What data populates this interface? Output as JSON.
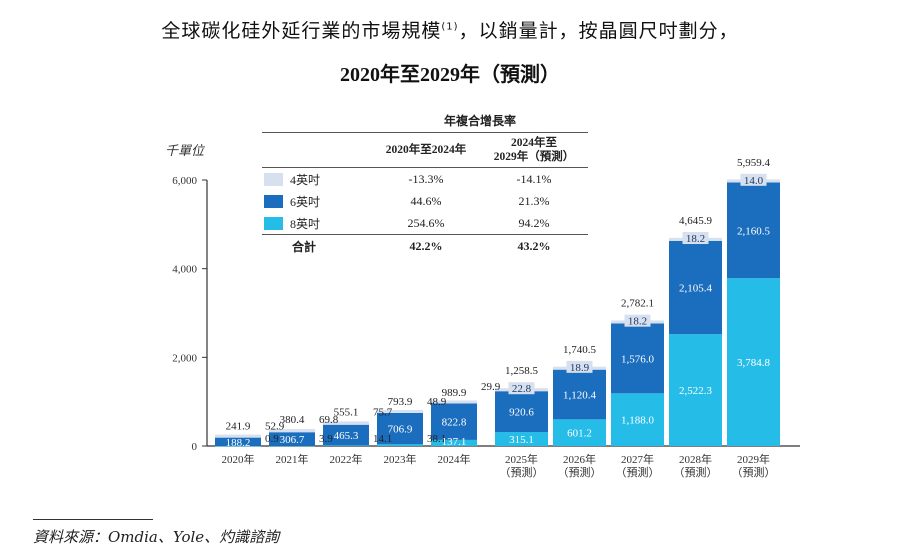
{
  "title": {
    "line1": "全球碳化硅外延行業的市場規模",
    "footnote": "(1)",
    "line1_suffix": "，以銷量計，按晶圓尺吋劃分，",
    "line2": "2020年至2029年（預測）"
  },
  "colors": {
    "inch4": "#d6e0ee",
    "inch6": "#1b6dbd",
    "inch8": "#25bde8",
    "axis": "#333333"
  },
  "cagr_table": {
    "title": "年複合增長率",
    "col1": "2020年至2024年",
    "col2_line1": "2024年至",
    "col2_line2": "2029年（預測）",
    "rows": [
      {
        "label": "4英吋",
        "key": "inch4",
        "c1": "-13.3%",
        "c2": "-14.1%"
      },
      {
        "label": "6英吋",
        "key": "inch6",
        "c1": "44.6%",
        "c2": "21.3%"
      },
      {
        "label": "8英吋",
        "key": "inch8",
        "c1": "254.6%",
        "c2": "94.2%"
      }
    ],
    "total": {
      "label": "合計",
      "c1": "42.2%",
      "c2": "43.2%"
    }
  },
  "source": "資料來源：Omdia、Yole、灼識諮詢",
  "chart_data": {
    "type": "bar",
    "stacked": true,
    "title": "全球碳化硅外延行業的市場規模，以銷量計，按晶圓尺吋劃分，2020年至2029年（預測）",
    "ylabel": "千單位",
    "xlabel": "",
    "ylim": [
      0,
      6000
    ],
    "yticks": [
      0,
      2000,
      4000,
      6000
    ],
    "ytick_labels": [
      "0",
      "2,000",
      "4,000",
      "6,000"
    ],
    "grid": false,
    "categories": [
      "2020年",
      "2021年",
      "2022年",
      "2023年",
      "2024年",
      "2025年",
      "2026年",
      "2027年",
      "2028年",
      "2029年"
    ],
    "category_sublabels": [
      "",
      "",
      "",
      "",
      "",
      "（預測）",
      "（預測）",
      "（預測）",
      "（預測）",
      "（預測）"
    ],
    "series": [
      {
        "name": "8英吋",
        "key": "inch8",
        "values": [
          0.9,
          3.9,
          14.1,
          38.1,
          137.1,
          315.1,
          601.2,
          1188.0,
          2522.3,
          3784.8
        ],
        "labels": [
          "0.9",
          "3.9",
          "14.1",
          "38.1",
          "137.1",
          "315.1",
          "601.2",
          "1,188.0",
          "2,522.3",
          "3,784.8"
        ]
      },
      {
        "name": "6英吋",
        "key": "inch6",
        "values": [
          188.2,
          306.7,
          465.3,
          706.9,
          822.8,
          920.6,
          1120.4,
          1576.0,
          2105.4,
          2160.5
        ],
        "labels": [
          "188.2",
          "306.7",
          "465.3",
          "706.9",
          "822.8",
          "920.6",
          "1,120.4",
          "1,576.0",
          "2,105.4",
          "2,160.5"
        ]
      },
      {
        "name": "4英吋",
        "key": "inch4",
        "values": [
          52.9,
          69.8,
          75.7,
          48.9,
          29.9,
          22.8,
          18.9,
          18.2,
          18.2,
          14.0
        ],
        "labels": [
          "52.9",
          "69.8",
          "75.7",
          "48.9",
          "29.9",
          "22.8",
          "18.9",
          "18.2",
          "18.2",
          "14.0"
        ]
      }
    ],
    "totals": [
      241.9,
      380.4,
      555.1,
      793.9,
      989.9,
      1258.5,
      1740.5,
      2782.1,
      4645.9,
      5959.4
    ],
    "total_labels": [
      "241.9",
      "380.4",
      "555.1",
      "793.9",
      "989.9",
      "1,258.5",
      "1,740.5",
      "2,782.1",
      "4,645.9",
      "5,959.4"
    ],
    "legend": "top-left (embedded in CAGR table)"
  }
}
